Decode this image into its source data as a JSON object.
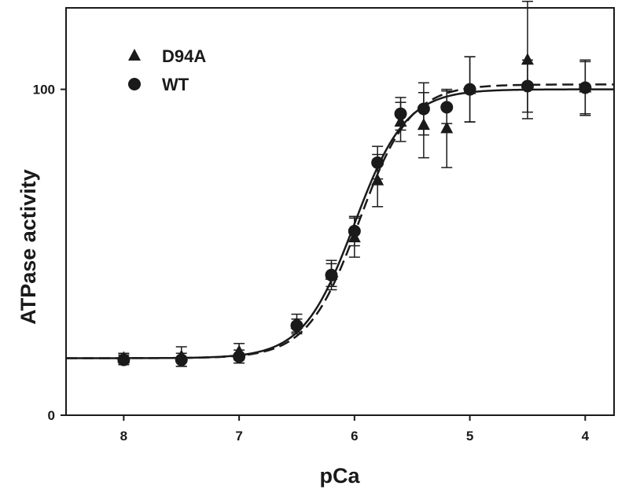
{
  "chart_data": {
    "type": "scatter",
    "xlabel": "pCa",
    "ylabel": "ATPase activity",
    "xlim": [
      8.5,
      3.75
    ],
    "ylim": [
      0,
      125
    ],
    "x_ticks": [
      8,
      7,
      6,
      5,
      4
    ],
    "x_tick_labels": [
      "8",
      "7",
      "6",
      "5",
      "4"
    ],
    "y_ticks": [
      0,
      100
    ],
    "y_tick_labels": [
      "0",
      "100"
    ],
    "legend_position": "top-left",
    "grid": false,
    "series": [
      {
        "name": "D94A",
        "marker": "triangle",
        "fit_line": "dashed",
        "x": [
          8,
          7.5,
          7,
          6.5,
          6.2,
          6,
          5.8,
          5.6,
          5.4,
          5.2,
          5,
          4.5,
          4
        ],
        "y": [
          17.5,
          18,
          19.5,
          28,
          43,
          54.5,
          72,
          90,
          89,
          88,
          100,
          109,
          100.5
        ],
        "err": [
          1.5,
          3,
          2.5,
          3,
          4.5,
          6,
          8,
          6,
          10,
          12,
          10,
          18,
          8.5
        ]
      },
      {
        "name": "WT",
        "marker": "circle",
        "fit_line": "solid",
        "x": [
          8,
          7.5,
          7,
          6.5,
          6.2,
          6,
          5.8,
          5.6,
          5.4,
          5.2,
          5,
          4.5,
          4
        ],
        "y": [
          17,
          17,
          18,
          27.5,
          43,
          56.5,
          77.5,
          92.5,
          94,
          94.5,
          100,
          101,
          100.5
        ],
        "err": [
          1.5,
          2,
          2,
          2,
          3.5,
          4.5,
          5,
          5,
          8,
          5,
          10,
          8,
          8
        ]
      }
    ],
    "fits": [
      {
        "name": "D94A",
        "style": "dashed",
        "min": 17.5,
        "max": 101.5,
        "pCa50": 5.96,
        "hill": 1.95
      },
      {
        "name": "WT",
        "style": "solid",
        "min": 17.5,
        "max": 100,
        "pCa50": 6.0,
        "hill": 1.95
      }
    ]
  }
}
